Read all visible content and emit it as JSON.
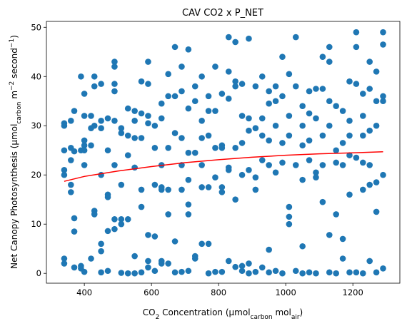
{
  "chart_data": {
    "type": "scatter",
    "title": "CAV CO2 x P_NET",
    "xlabel": [
      {
        "text": "CO"
      },
      {
        "text": "2",
        "shift": "sub"
      },
      {
        "text": " Concentration (µmol"
      },
      {
        "text": "carbon",
        "shift": "sub"
      },
      {
        "text": " mol"
      },
      {
        "text": "air",
        "shift": "sub"
      },
      {
        "text": ")"
      }
    ],
    "ylabel": [
      {
        "text": "Net Canopy Photosynthesis (µmol"
      },
      {
        "text": "carbon",
        "shift": "sub"
      },
      {
        "text": " m"
      },
      {
        "text": "−2",
        "shift": "super"
      },
      {
        "text": " second"
      },
      {
        "text": "−1",
        "shift": "super"
      },
      {
        "text": ")"
      }
    ],
    "xlim": [
      287,
      1340
    ],
    "ylim": [
      -2.0,
      51.2
    ],
    "xticks": [
      400,
      600,
      800,
      1000,
      1200
    ],
    "yticks": [
      0,
      10,
      20,
      30,
      40,
      50
    ],
    "series": [
      {
        "type": "scatter",
        "color": "#1f77b4",
        "x": [
          340,
          340,
          340,
          340,
          340,
          340,
          340,
          360,
          360,
          360,
          360,
          360,
          370,
          370,
          370,
          370,
          370,
          390,
          390,
          390,
          390,
          400,
          400,
          400,
          400,
          400,
          400,
          400,
          420,
          420,
          420,
          420,
          430,
          430,
          430,
          430,
          430,
          450,
          450,
          450,
          450,
          450,
          450,
          450,
          470,
          470,
          470,
          470,
          470,
          470,
          490,
          490,
          490,
          490,
          490,
          490,
          490,
          490,
          510,
          510,
          510,
          510,
          510,
          510,
          530,
          530,
          530,
          530,
          530,
          550,
          550,
          550,
          550,
          550,
          550,
          570,
          570,
          570,
          570,
          570,
          570,
          590,
          590,
          590,
          590,
          590,
          590,
          590,
          610,
          610,
          610,
          610,
          610,
          630,
          630,
          630,
          630,
          630,
          630,
          630,
          650,
          650,
          650,
          650,
          650,
          650,
          670,
          670,
          670,
          670,
          670,
          690,
          690,
          690,
          690,
          690,
          690,
          710,
          710,
          710,
          710,
          710,
          710,
          710,
          730,
          730,
          730,
          730,
          730,
          750,
          750,
          750,
          750,
          750,
          750,
          770,
          770,
          770,
          770,
          770,
          770,
          790,
          790,
          790,
          790,
          790,
          810,
          810,
          810,
          810,
          810,
          810,
          830,
          830,
          830,
          830,
          830,
          830,
          850,
          850,
          850,
          850,
          850,
          850,
          870,
          870,
          870,
          870,
          870,
          870,
          890,
          890,
          890,
          890,
          890,
          890,
          910,
          910,
          910,
          910,
          910,
          930,
          930,
          930,
          930,
          930,
          950,
          950,
          950,
          950,
          950,
          950,
          970,
          970,
          970,
          970,
          970,
          990,
          990,
          990,
          990,
          990,
          1010,
          1010,
          1010,
          1010,
          1010,
          1010,
          1030,
          1030,
          1030,
          1030,
          1050,
          1050,
          1050,
          1050,
          1050,
          1050,
          1070,
          1070,
          1070,
          1070,
          1070,
          1090,
          1090,
          1090,
          1090,
          1090,
          1110,
          1110,
          1110,
          1110,
          1110,
          1130,
          1130,
          1130,
          1130,
          1130,
          1130,
          1150,
          1150,
          1150,
          1150,
          1150,
          1170,
          1170,
          1170,
          1170,
          1170,
          1190,
          1190,
          1190,
          1190,
          1190,
          1190,
          1210,
          1210,
          1210,
          1210,
          1210,
          1230,
          1230,
          1230,
          1230,
          1230,
          1230,
          1250,
          1250,
          1250,
          1250,
          1250,
          1250,
          1270,
          1270,
          1270,
          1270,
          1270,
          1270,
          1290,
          1290,
          1290,
          1290,
          1290,
          1290
        ],
        "values": [
          30.5,
          25,
          21,
          20,
          3,
          2,
          30,
          31,
          25.5,
          23,
          16.5,
          18,
          11.2,
          8.5,
          1.2,
          24.8,
          33,
          40,
          25,
          1.5,
          1,
          36.5,
          27,
          26,
          25,
          22,
          0.3,
          32,
          26,
          3,
          32,
          29.5,
          40,
          38,
          30,
          12.7,
          12,
          38.5,
          31,
          29.5,
          6,
          4.5,
          0.2,
          20,
          31.5,
          25,
          16,
          15.5,
          8.6,
          0.5,
          43,
          42,
          38.5,
          37,
          31,
          22,
          11,
          9,
          29.5,
          28.5,
          18,
          11,
          0.1,
          10,
          33.5,
          28,
          24,
          11,
          0,
          33,
          31,
          27.5,
          21.5,
          3.5,
          0,
          39,
          32.5,
          27.5,
          17,
          13.5,
          0.2,
          43,
          38.5,
          32,
          30.5,
          7.8,
          2.5,
          1.2,
          30,
          25.5,
          18,
          7.5,
          0.5,
          34.5,
          31.5,
          22,
          17.5,
          17,
          2.5,
          2,
          40.5,
          36,
          25.5,
          17,
          12,
          2,
          46,
          36,
          28.5,
          6.5,
          0.2,
          42,
          37,
          27.5,
          22,
          17,
          0.3,
          45.5,
          33.5,
          24.5,
          14,
          12,
          0.5,
          19,
          38,
          35,
          24.5,
          3,
          3.5,
          40,
          31,
          27.5,
          22,
          17.5,
          6,
          36,
          33,
          28,
          17.5,
          6,
          0,
          42,
          33,
          25.5,
          19.5,
          0.3,
          36.5,
          26,
          25.5,
          17.5,
          16.5,
          0.3,
          48,
          41,
          35.5,
          21.5,
          21,
          2.5,
          47,
          39,
          38,
          25.5,
          15,
          1.3,
          38.5,
          32,
          26.5,
          20,
          1.5,
          0.5,
          47.7,
          31.5,
          29,
          21,
          2,
          0,
          38,
          29.5,
          19.5,
          17,
          0.3,
          40,
          31.5,
          28,
          23,
          1.2,
          37,
          34.5,
          27,
          22,
          4.8,
          0.2,
          38,
          35,
          30,
          20.5,
          0.5,
          44,
          36,
          26.5,
          22.5,
          0,
          40.5,
          32,
          28,
          13.5,
          11.5,
          10,
          48,
          38,
          22,
          0.5,
          34,
          30,
          26,
          19,
          5.5,
          0,
          37,
          32.5,
          27,
          23,
          0.2,
          37.5,
          31.5,
          20.5,
          19.5,
          0,
          44,
          37.5,
          28,
          22,
          14.5,
          46,
          43,
          35,
          30,
          7.8,
          0.2,
          34,
          25,
          22.5,
          12,
          0,
          33,
          26.5,
          22,
          3,
          7,
          39,
          31,
          28,
          24,
          16,
          0.2,
          49,
          46,
          38.5,
          23.5,
          0.2,
          36.5,
          32,
          28,
          22.5,
          17,
          0,
          43,
          37.5,
          29,
          22,
          18,
          2.5,
          41,
          35,
          30,
          18.5,
          12.5,
          0.2,
          49,
          46.5,
          36,
          35,
          20,
          1
        ]
      },
      {
        "type": "line",
        "color": "#ff0000",
        "x": [
          340,
          400,
          500,
          600,
          700,
          800,
          900,
          1000,
          1100,
          1200,
          1290
        ],
        "values": [
          18.7,
          19.7,
          20.8,
          21.7,
          22.5,
          23.1,
          23.6,
          24.0,
          24.3,
          24.5,
          24.7
        ]
      }
    ]
  }
}
